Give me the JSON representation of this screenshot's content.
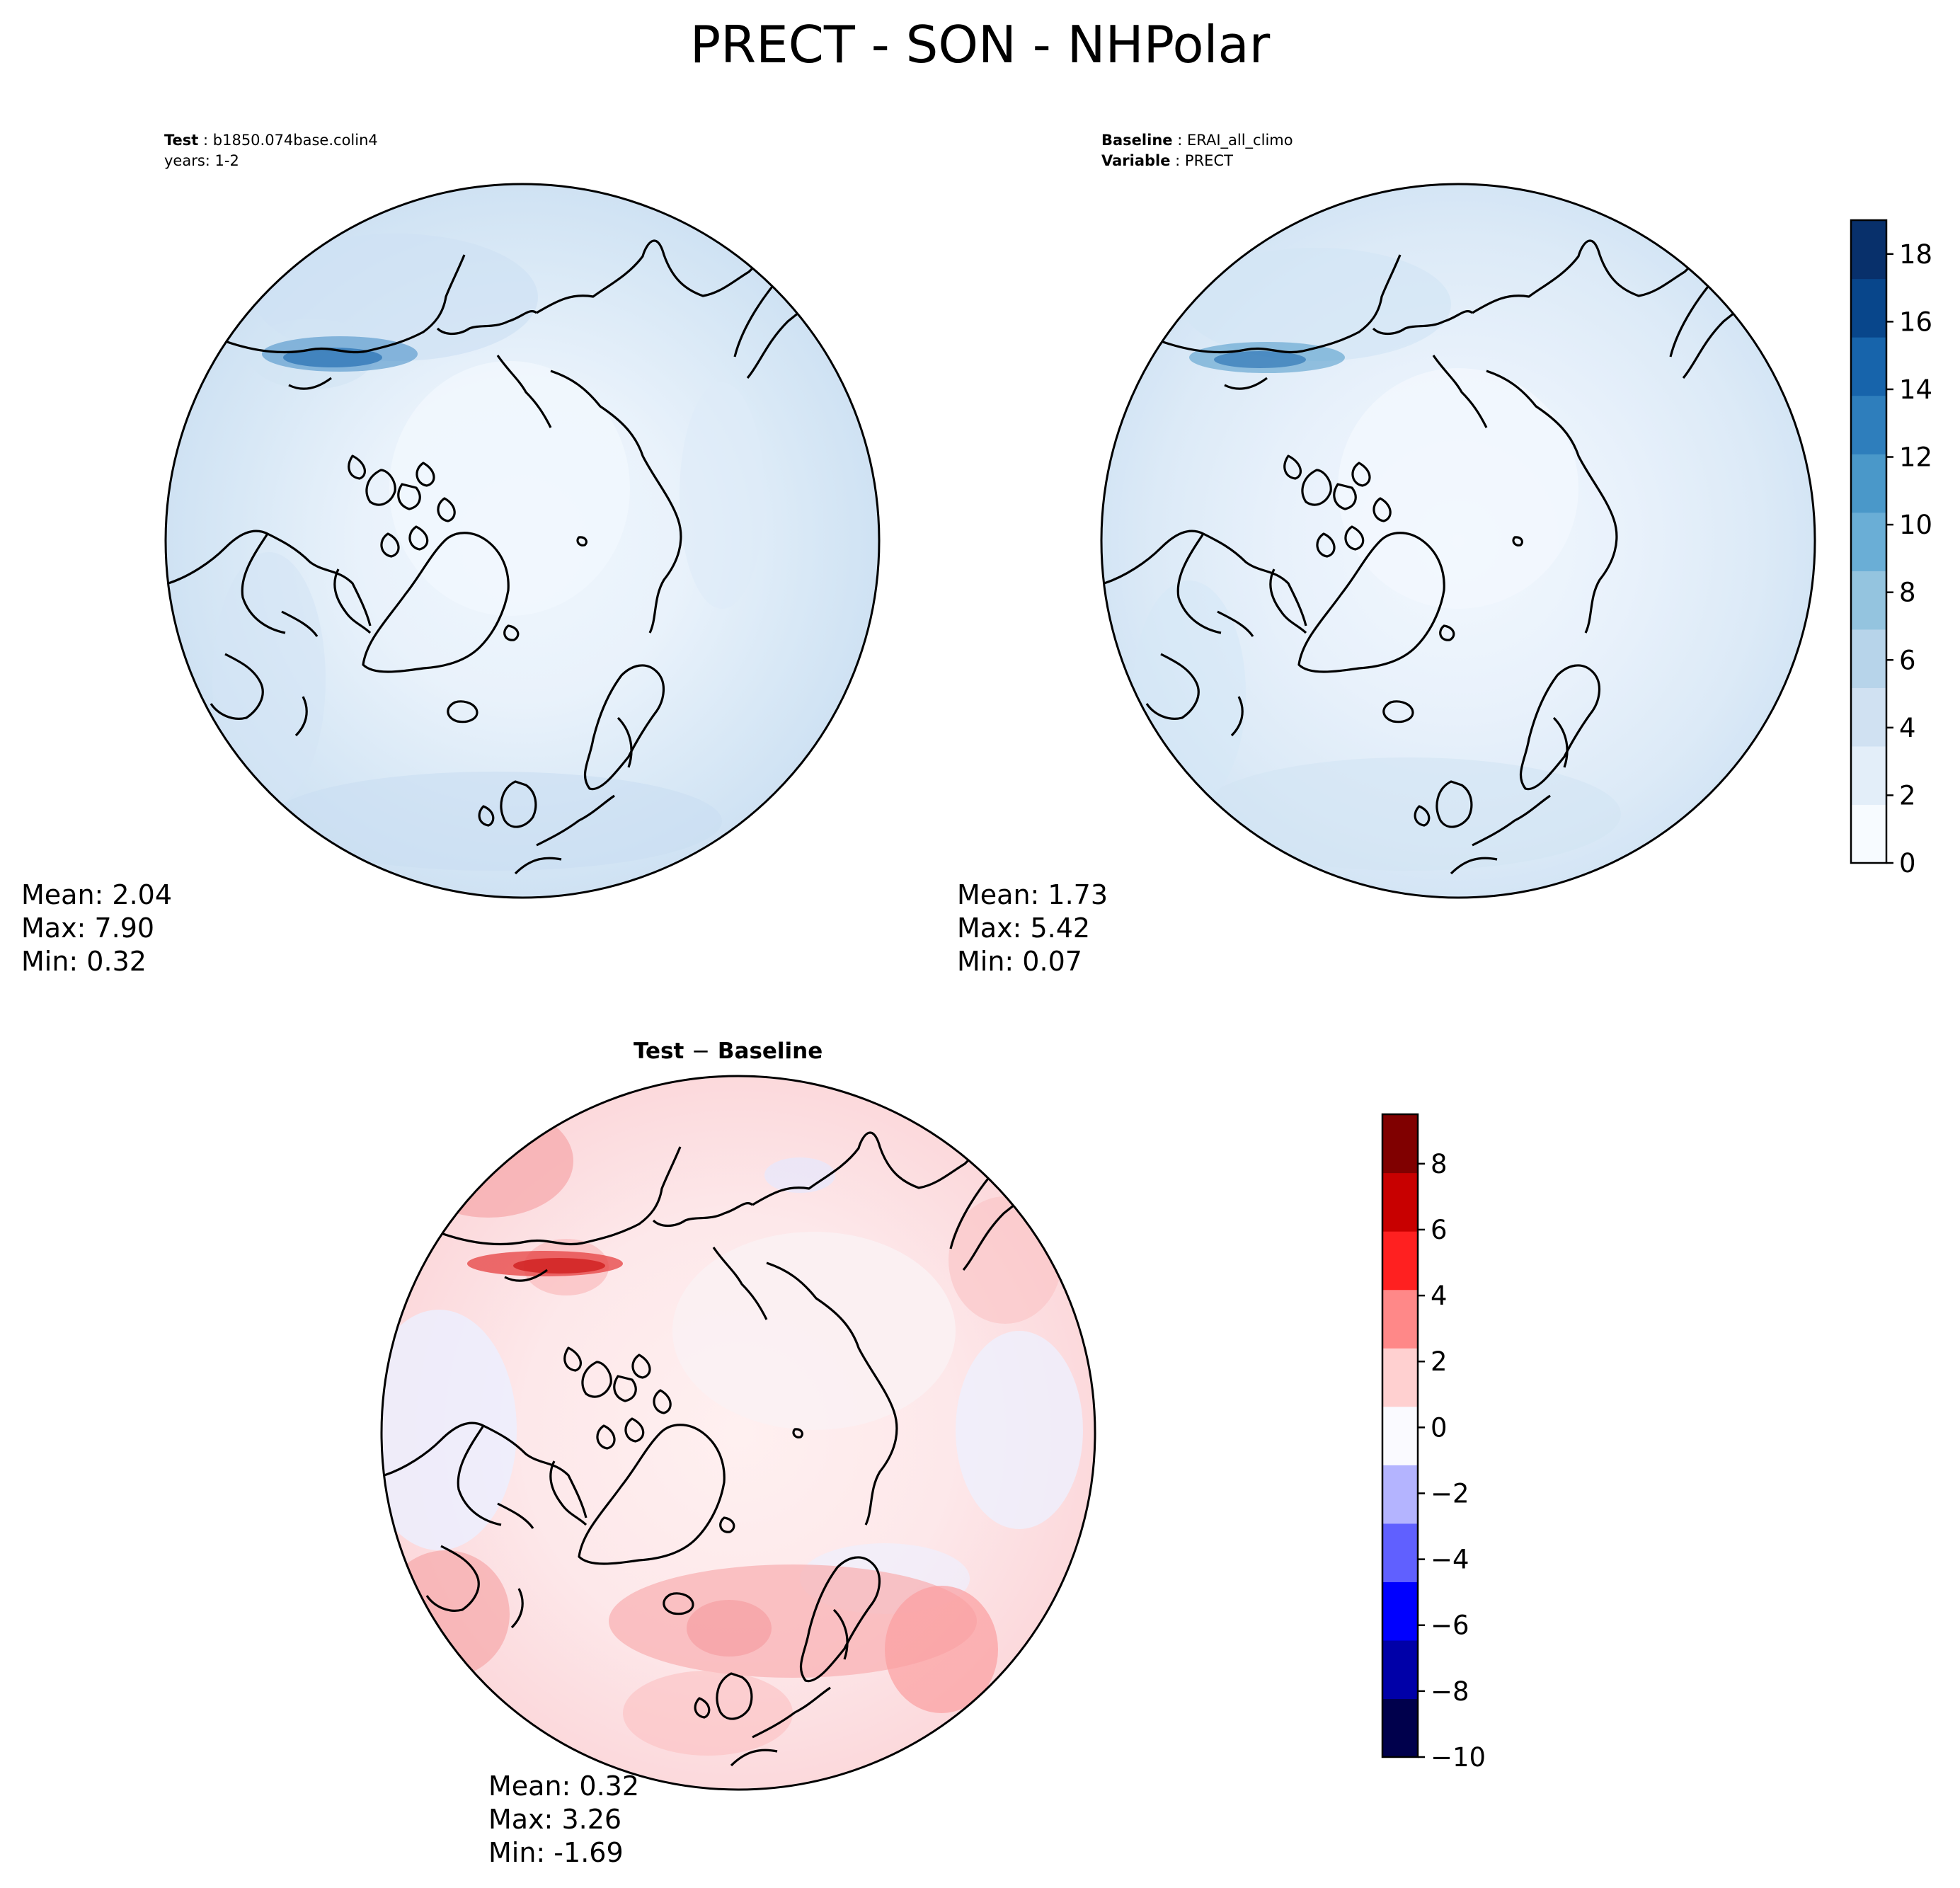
{
  "figure": {
    "title": "PRECT - SON - NHPolar"
  },
  "panels": [
    {
      "id": "test",
      "header_key_1": "Test",
      "header_value_1": "b1850.074base.colin4",
      "header_line_2": "years: 1-2",
      "stats": {
        "mean": "Mean:  2.04",
        "max": "Max:  7.90",
        "min": "Min:  0.32"
      }
    },
    {
      "id": "baseline",
      "header_key_1": "Baseline",
      "header_value_1": "ERAI_all_climo",
      "header_key_2": "Variable",
      "header_value_2": "PRECT",
      "stats": {
        "mean": "Mean:  1.73",
        "max": "Max:  5.42",
        "min": "Min:  0.07"
      }
    },
    {
      "id": "difference",
      "title_left": "Test",
      "title_op": "−",
      "title_right": "Baseline",
      "stats": {
        "mean": "Mean:  0.32",
        "max": "Max:  3.26",
        "min": "Min: -1.69"
      }
    }
  ],
  "colorbars": {
    "main": {
      "colormap": "Blues",
      "vmin": 0,
      "vmax": 19,
      "ticks": [
        "0",
        "2",
        "4",
        "6",
        "8",
        "10",
        "12",
        "14",
        "16",
        "18"
      ],
      "colors": [
        "#f7fbff",
        "#e3eef9",
        "#d0e1f2",
        "#b7d4ea",
        "#94c4df",
        "#6aaed6",
        "#4a98c9",
        "#2e7ebc",
        "#1764ab",
        "#08468b",
        "#08306b"
      ]
    },
    "diff": {
      "colormap": "seismic",
      "vmin": -10,
      "vmax": 9.5,
      "ticks": [
        "−10",
        "−8",
        "−6",
        "−4",
        "−2",
        "0",
        "2",
        "4",
        "6",
        "8"
      ],
      "colors": [
        "#00004c",
        "#0000a8",
        "#0000ff",
        "#6060ff",
        "#b4b4ff",
        "#fafaff",
        "#ffd0d0",
        "#ff8888",
        "#ff2020",
        "#c80000",
        "#800000"
      ]
    }
  }
}
